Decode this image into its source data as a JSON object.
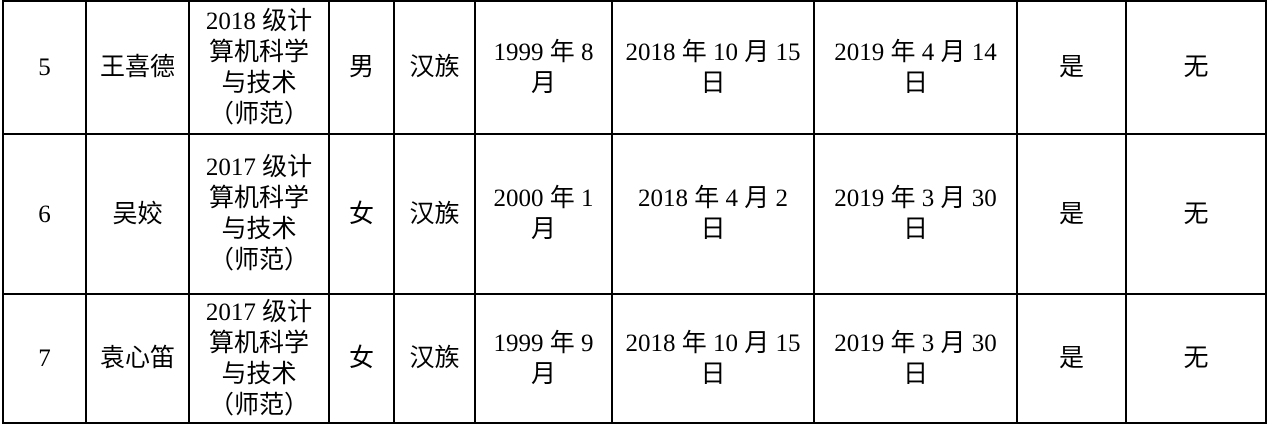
{
  "colors": {
    "background": "#ffffff",
    "border": "#000000",
    "text": "#000000"
  },
  "table": {
    "rows": [
      {
        "cells": [
          "5",
          "王喜德",
          "2018 级计\n算机科学\n与技术\n（师范）",
          "男",
          "汉族",
          "1999 年 8\n月",
          "2018 年 10 月 15\n日",
          "2019 年 4 月 14\n日",
          "是",
          "无"
        ]
      },
      {
        "cells": [
          "6",
          "吴姣",
          "2017 级计\n算机科学\n与技术\n（师范）",
          "女",
          "汉族",
          "2000 年 1\n月",
          "2018 年 4 月 2\n日",
          "2019 年 3 月 30\n日",
          "是",
          "无"
        ]
      },
      {
        "cells": [
          "7",
          "袁心笛",
          "2017 级计\n算机科学\n与技术\n（师范）",
          "女",
          "汉族",
          "1999 年 9\n月",
          "2018 年 10 月 15\n日",
          "2019 年 3 月 30\n日",
          "是",
          "无"
        ]
      }
    ]
  }
}
